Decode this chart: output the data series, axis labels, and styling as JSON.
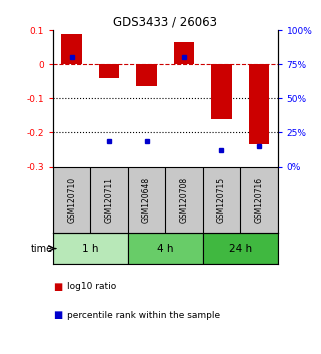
{
  "title": "GDS3433 / 26063",
  "samples": [
    "GSM120710",
    "GSM120711",
    "GSM120648",
    "GSM120708",
    "GSM120715",
    "GSM120716"
  ],
  "log10_ratio": [
    0.09,
    -0.04,
    -0.065,
    0.065,
    -0.16,
    -0.235
  ],
  "percentile_rank_pct": [
    80,
    19,
    19,
    80,
    12,
    15
  ],
  "groups": [
    {
      "label": "1 h",
      "indices": [
        0,
        1
      ],
      "color": "#b8e8b8"
    },
    {
      "label": "4 h",
      "indices": [
        2,
        3
      ],
      "color": "#68cc68"
    },
    {
      "label": "24 h",
      "indices": [
        4,
        5
      ],
      "color": "#40b840"
    }
  ],
  "ylim": [
    -0.3,
    0.1
  ],
  "yticks_left": [
    -0.3,
    -0.2,
    -0.1,
    0.0,
    0.1
  ],
  "yticks_right_vals": [
    0,
    25,
    50,
    75,
    100
  ],
  "bar_color": "#cc0000",
  "dot_color": "#0000cc",
  "zero_line_color": "#cc0000",
  "dotted_line_vals": [
    -0.1,
    -0.2
  ],
  "bg_color": "#ffffff",
  "sample_bg_color": "#c8c8c8",
  "legend_bar_label": "log10 ratio",
  "legend_dot_label": "percentile rank within the sample"
}
